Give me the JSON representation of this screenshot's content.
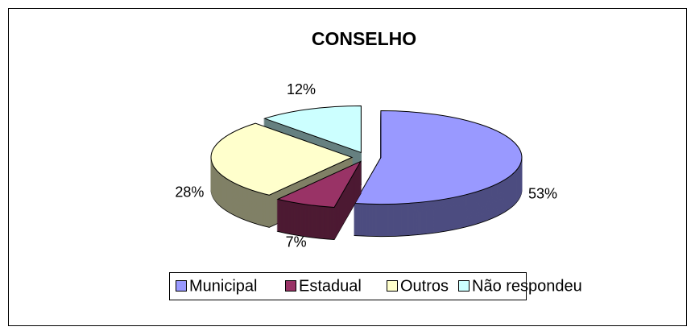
{
  "chart_data": {
    "type": "pie",
    "title": "CONSELHO",
    "categories": [
      "Municipal",
      "Estadual",
      "Outros",
      "Não respondeu"
    ],
    "values": [
      53,
      7,
      28,
      12
    ],
    "value_labels": [
      "53%",
      "7%",
      "28%",
      "12%"
    ],
    "colors": [
      "#9999ff",
      "#993366",
      "#ffffcc",
      "#ccffff"
    ],
    "legend": "bottom"
  }
}
